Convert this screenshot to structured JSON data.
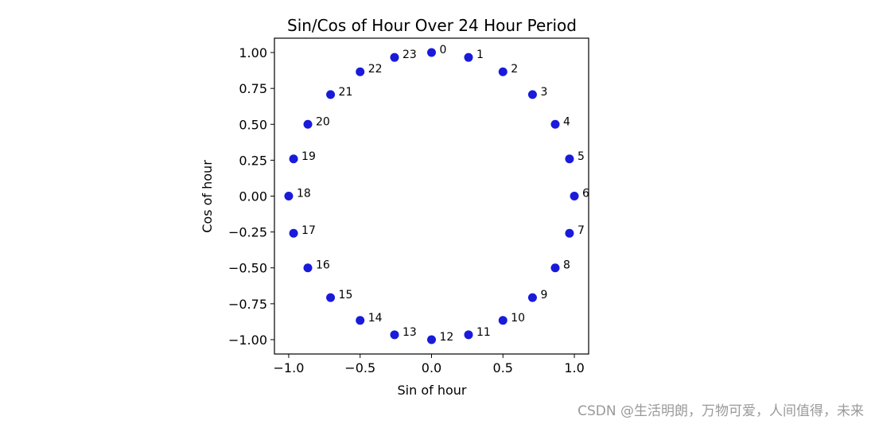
{
  "chart_data": {
    "type": "scatter",
    "title": "Sin/Cos of Hour Over 24 Hour Period",
    "xlabel": "Sin of hour",
    "ylabel": "Cos of hour",
    "xlim": [
      -1.1,
      1.1
    ],
    "ylim": [
      -1.1,
      1.1
    ],
    "xticks": [
      -1.0,
      -0.5,
      0.0,
      0.5,
      1.0
    ],
    "xtick_labels": [
      "−1.0",
      "−0.5",
      "0.0",
      "0.5",
      "1.0"
    ],
    "yticks": [
      1.0,
      0.75,
      0.5,
      0.25,
      0.0,
      -0.25,
      -0.5,
      -0.75,
      -1.0
    ],
    "ytick_labels": [
      "1.00",
      "0.75",
      "0.50",
      "0.25",
      "0.00",
      "−0.25",
      "−0.50",
      "−0.75",
      "−1.00"
    ],
    "grid": false,
    "point_color": "#1a1adb",
    "points": [
      {
        "label": "0",
        "x": 0.0,
        "y": 1.0
      },
      {
        "label": "1",
        "x": 0.259,
        "y": 0.966
      },
      {
        "label": "2",
        "x": 0.5,
        "y": 0.866
      },
      {
        "label": "3",
        "x": 0.707,
        "y": 0.707
      },
      {
        "label": "4",
        "x": 0.866,
        "y": 0.5
      },
      {
        "label": "5",
        "x": 0.966,
        "y": 0.259
      },
      {
        "label": "6",
        "x": 1.0,
        "y": 0.0
      },
      {
        "label": "7",
        "x": 0.966,
        "y": -0.259
      },
      {
        "label": "8",
        "x": 0.866,
        "y": -0.5
      },
      {
        "label": "9",
        "x": 0.707,
        "y": -0.707
      },
      {
        "label": "10",
        "x": 0.5,
        "y": -0.866
      },
      {
        "label": "11",
        "x": 0.259,
        "y": -0.966
      },
      {
        "label": "12",
        "x": 0.0,
        "y": -1.0
      },
      {
        "label": "13",
        "x": -0.259,
        "y": -0.966
      },
      {
        "label": "14",
        "x": -0.5,
        "y": -0.866
      },
      {
        "label": "15",
        "x": -0.707,
        "y": -0.707
      },
      {
        "label": "16",
        "x": -0.866,
        "y": -0.5
      },
      {
        "label": "17",
        "x": -0.966,
        "y": -0.259
      },
      {
        "label": "18",
        "x": -1.0,
        "y": 0.0
      },
      {
        "label": "19",
        "x": -0.966,
        "y": 0.259
      },
      {
        "label": "20",
        "x": -0.866,
        "y": 0.5
      },
      {
        "label": "21",
        "x": -0.707,
        "y": 0.707
      },
      {
        "label": "22",
        "x": -0.5,
        "y": 0.866
      },
      {
        "label": "23",
        "x": -0.259,
        "y": 0.966
      }
    ]
  },
  "watermark": "CSDN @生活明朗，万物可爱，人间值得，未来"
}
